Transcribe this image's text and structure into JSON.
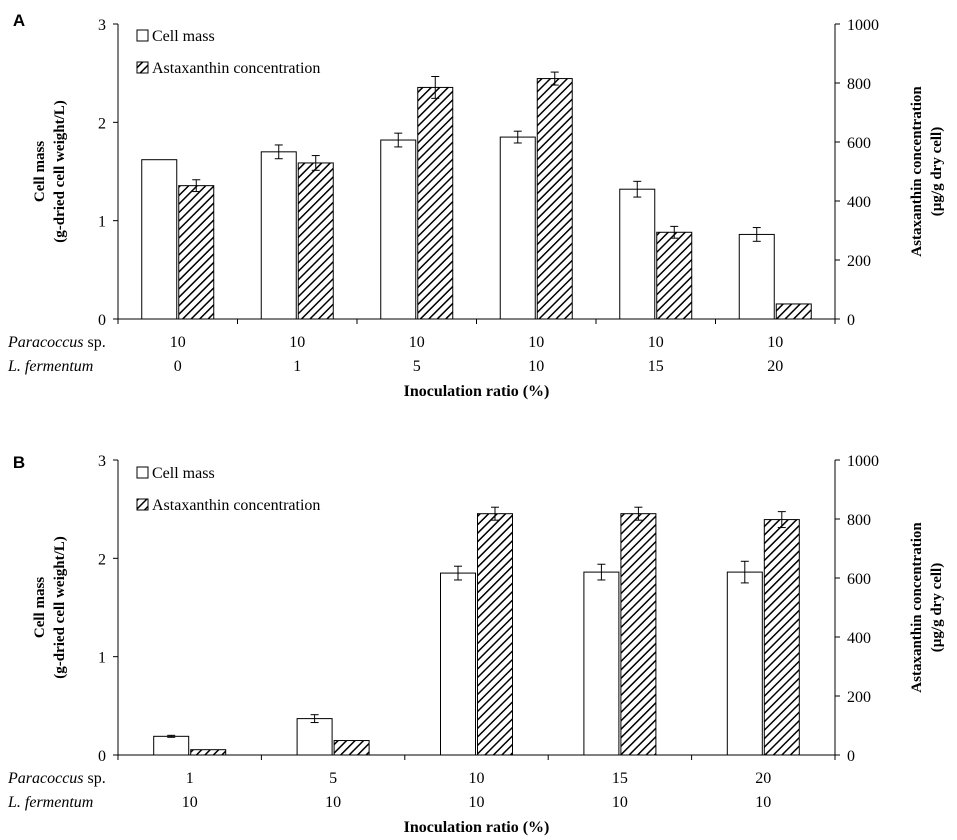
{
  "chart_data": [
    {
      "panel": "A",
      "type": "bar",
      "row_labels": [
        {
          "species": "Paracoccus",
          "suffix": " sp.",
          "values": [
            "10",
            "10",
            "10",
            "10",
            "10",
            "10"
          ]
        },
        {
          "species": "L. fermentum",
          "suffix": "",
          "values": [
            "0",
            "1",
            "5",
            "10",
            "15",
            "20"
          ]
        }
      ],
      "xlabel": "Inoculation ratio (%)",
      "ylabel_left": [
        "Cell mass",
        "(g-dried cell weight/L)"
      ],
      "ylabel_right": [
        "Astaxanthin concentration",
        "(µg/g dry cell)"
      ],
      "ylim_left": [
        0,
        3
      ],
      "yticks_left": [
        0,
        1,
        2,
        3
      ],
      "ylim_right": [
        0,
        1000
      ],
      "yticks_right": [
        0,
        200,
        400,
        600,
        800,
        1000
      ],
      "legend": [
        "Cell mass",
        "Astaxanthin concentration"
      ],
      "series": [
        {
          "name": "Cell mass",
          "axis": "left",
          "values": [
            1.62,
            1.7,
            1.82,
            1.85,
            1.32,
            0.86
          ],
          "errors": [
            0,
            0.07,
            0.07,
            0.06,
            0.08,
            0.07
          ]
        },
        {
          "name": "Astaxanthin concentration",
          "axis": "right",
          "values": [
            452,
            529,
            785,
            815,
            294,
            51
          ],
          "errors": [
            20,
            25,
            37,
            22,
            20,
            0
          ]
        }
      ]
    },
    {
      "panel": "B",
      "type": "bar",
      "row_labels": [
        {
          "species": "Paracoccus",
          "suffix": " sp.",
          "values": [
            "1",
            "5",
            "10",
            "15",
            "20"
          ]
        },
        {
          "species": "L. fermentum",
          "suffix": "",
          "values": [
            "10",
            "10",
            "10",
            "10",
            "10"
          ]
        }
      ],
      "xlabel": "Inoculation ratio (%)",
      "ylabel_left": [
        "Cell mass",
        "(g-dried cell weight/L)"
      ],
      "ylabel_right": [
        "Astaxanthin concentration",
        "(µg/g dry cell)"
      ],
      "ylim_left": [
        0,
        3
      ],
      "yticks_left": [
        0,
        1,
        2,
        3
      ],
      "ylim_right": [
        0,
        1000
      ],
      "yticks_right": [
        0,
        200,
        400,
        600,
        800,
        1000
      ],
      "legend": [
        "Cell mass",
        "Astaxanthin concentration"
      ],
      "series": [
        {
          "name": "Cell mass",
          "axis": "left",
          "values": [
            0.19,
            0.37,
            1.85,
            1.86,
            1.86
          ],
          "errors": [
            0.01,
            0.04,
            0.07,
            0.08,
            0.11
          ]
        },
        {
          "name": "Astaxanthin concentration",
          "axis": "right",
          "values": [
            18,
            49,
            818,
            818,
            798
          ],
          "errors": [
            0,
            0,
            22,
            22,
            27
          ]
        }
      ]
    }
  ],
  "colors": {
    "axis": "#000000",
    "bar_fill": "#ffffff",
    "hatch": "#000000"
  }
}
